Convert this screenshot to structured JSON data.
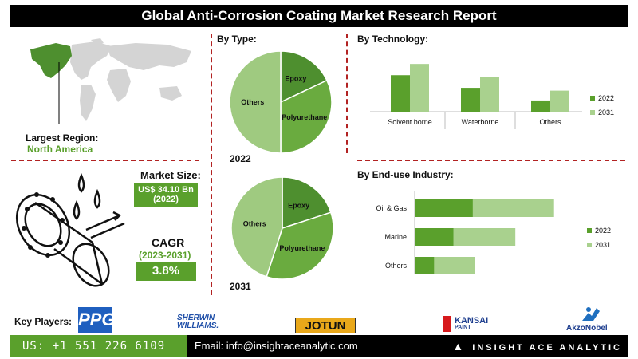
{
  "title": "Global Anti-Corrosion Coating Market Research Report",
  "region": {
    "label": "Largest Region:",
    "value": "North America"
  },
  "market_size": {
    "label": "Market Size:",
    "value": "US$ 34.10 Bn",
    "year": "(2022)"
  },
  "cagr": {
    "label": "CAGR",
    "period": "(2023-2031)",
    "value": "3.8%"
  },
  "by_type": {
    "heading": "By  Type:",
    "chart_2022_label": "2022",
    "chart_2031_label": "2031"
  },
  "by_technology": {
    "heading": "By Technology:"
  },
  "by_end_use": {
    "heading": "By End-use Industry:"
  },
  "chart_data": [
    {
      "type": "pie",
      "title": "2022",
      "labels": [
        "Epoxy",
        "Polyurethane",
        "Others"
      ],
      "values": [
        18,
        32,
        50
      ],
      "colors": [
        "#4e8f2f",
        "#6aab3f",
        "#9fca80"
      ]
    },
    {
      "type": "pie",
      "title": "2031",
      "labels": [
        "Epoxy",
        "Polyurethane",
        "Others"
      ],
      "values": [
        20,
        35,
        45
      ],
      "colors": [
        "#4e8f2f",
        "#6aab3f",
        "#9fca80"
      ]
    },
    {
      "type": "bar",
      "categories": [
        "Solvent borne",
        "Waterborne",
        "Others"
      ],
      "series": [
        {
          "name": "2022",
          "values": [
            52,
            34,
            16
          ],
          "color": "#5aa02c"
        },
        {
          "name": "2031",
          "values": [
            68,
            50,
            30
          ],
          "color": "#a9d18e"
        }
      ],
      "ylim": [
        0,
        75
      ]
    },
    {
      "type": "bar",
      "orientation": "horizontal",
      "categories": [
        "Oil & Gas",
        "Marine",
        "Others"
      ],
      "series": [
        {
          "name": "2022",
          "values": [
            30,
            20,
            10
          ],
          "color": "#5aa02c"
        },
        {
          "name": "2031",
          "values": [
            72,
            52,
            31
          ],
          "color": "#a9d18e"
        }
      ],
      "xlim": [
        0,
        75
      ]
    }
  ],
  "key_players": {
    "label": "Key Players:",
    "logos": [
      "PPG",
      "SHERWIN WILLIAMS.",
      "JOTUN",
      "KANSAI",
      "PAINT",
      "AkzoNobel"
    ]
  },
  "footer": {
    "phone": "US: +1 551 226 6109",
    "email": "Email: info@insightaceanalytic.com",
    "brand": "INSIGHT ACE ANALYTIC"
  }
}
